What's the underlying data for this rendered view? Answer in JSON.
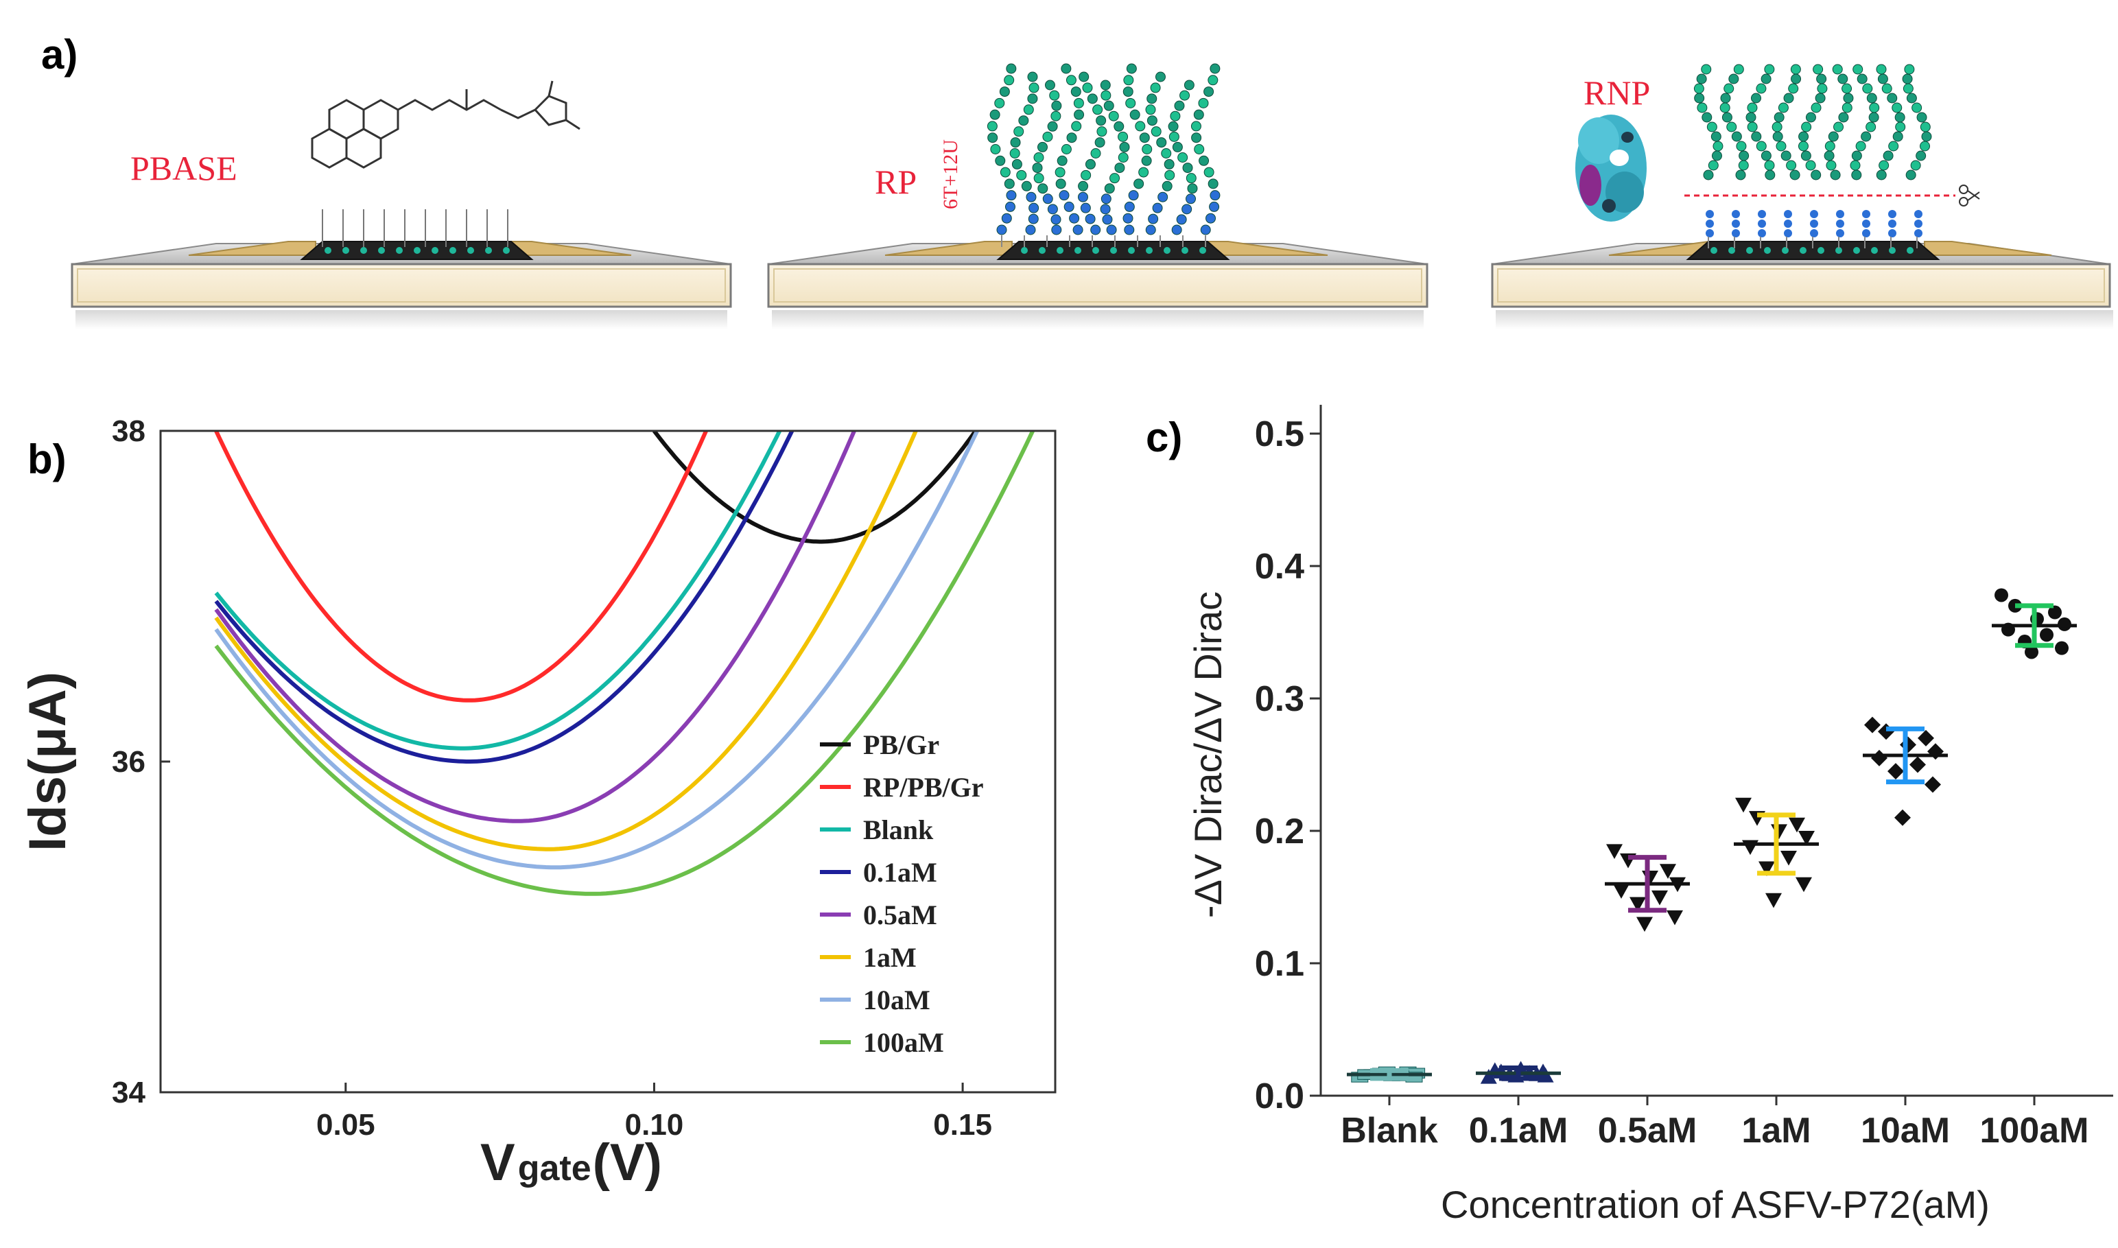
{
  "panel_a": {
    "label": "a)",
    "step1_label": "PBASE",
    "step2_label": "RP",
    "step2_sub": "6T+12U",
    "step3_label": "RNP"
  },
  "chart_data": [
    {
      "panel": "b)",
      "type": "line",
      "xlabel_main": "V",
      "xlabel_sub": "gate",
      "xlabel_unit": "(V)",
      "ylabel": "Ids(μA)",
      "xlim": [
        0.02,
        0.165
      ],
      "ylim": [
        34,
        38
      ],
      "xticks": [
        0.05,
        0.1,
        0.15
      ],
      "xtick_labels": [
        "0.05",
        "0.10",
        "0.15"
      ],
      "yticks": [
        34,
        36,
        38
      ],
      "ytick_labels": [
        "34",
        "36",
        "38"
      ],
      "series": [
        {
          "name": "PB/Gr",
          "color": "#111111",
          "vmin": 0.127,
          "imin": 37.33,
          "x_start": 0.1,
          "x_end": 0.153,
          "i_left": 38.0
        },
        {
          "name": "RP/PB/Gr",
          "color": "#ff2a2a",
          "vmin": 0.07,
          "imin": 36.37,
          "x_start": 0.029,
          "x_end": 0.109,
          "i_left": 38.0
        },
        {
          "name": "Blank",
          "color": "#12b8a6",
          "vmin": 0.069,
          "imin": 36.08,
          "x_start": 0.029,
          "x_end": 0.121,
          "i_left": 37.02
        },
        {
          "name": "0.1aM",
          "color": "#1c1f9a",
          "vmin": 0.07,
          "imin": 36.0,
          "x_start": 0.029,
          "x_end": 0.123,
          "i_left": 36.97
        },
        {
          "name": "0.5aM",
          "color": "#8a3db3",
          "vmin": 0.078,
          "imin": 35.64,
          "x_start": 0.029,
          "x_end": 0.133,
          "i_left": 36.92
        },
        {
          "name": "1aM",
          "color": "#f2c200",
          "vmin": 0.083,
          "imin": 35.47,
          "x_start": 0.029,
          "x_end": 0.143,
          "i_left": 36.87
        },
        {
          "name": "10aM",
          "color": "#8fb1e3",
          "vmin": 0.084,
          "imin": 35.36,
          "x_start": 0.029,
          "x_end": 0.153,
          "i_left": 36.8
        },
        {
          "name": "100aM",
          "color": "#6bbf4a",
          "vmin": 0.09,
          "imin": 35.2,
          "x_start": 0.029,
          "x_end": 0.162,
          "i_left": 36.7
        }
      ]
    },
    {
      "panel": "c)",
      "type": "scatter",
      "xlabel": "Concentration of ASFV-P72(aM)",
      "ylabel": "-ΔV Dirac/ΔV Dirac",
      "ylim": [
        0.0,
        0.5
      ],
      "yticks": [
        0.0,
        0.1,
        0.2,
        0.3,
        0.4,
        0.5
      ],
      "ytick_labels": [
        "0.0",
        "0.1",
        "0.2",
        "0.3",
        "0.4",
        "0.5"
      ],
      "categories": [
        "Blank",
        "0.1aM",
        "0.5aM",
        "1aM",
        "10aM",
        "100aM"
      ],
      "groups": [
        {
          "name": "Blank",
          "marker": "square",
          "color": "#6fb7b5",
          "mean": 0.016,
          "sd": 0.003,
          "points": [
            0.014,
            0.016,
            0.018,
            0.015,
            0.017,
            0.016,
            0.015,
            0.017,
            0.014,
            0.018
          ]
        },
        {
          "name": "0.1aM",
          "marker": "triangle-up",
          "color": "#1a2a6e",
          "mean": 0.017,
          "sd": 0.004,
          "points": [
            0.014,
            0.018,
            0.016,
            0.02,
            0.015,
            0.019,
            0.017,
            0.016,
            0.018,
            0.015
          ]
        },
        {
          "name": "0.5aM",
          "marker": "triangle-down",
          "color": "#7b2a80",
          "mean": 0.16,
          "sd": 0.02,
          "points": [
            0.185,
            0.178,
            0.17,
            0.165,
            0.16,
            0.155,
            0.15,
            0.145,
            0.135,
            0.13
          ]
        },
        {
          "name": "1aM",
          "marker": "triangle-down",
          "color": "#f2d21a",
          "mean": 0.19,
          "sd": 0.022,
          "points": [
            0.22,
            0.21,
            0.205,
            0.2,
            0.195,
            0.188,
            0.18,
            0.172,
            0.16,
            0.148
          ]
        },
        {
          "name": "10aM",
          "marker": "diamond",
          "color": "#2196f3",
          "mean": 0.257,
          "sd": 0.02,
          "points": [
            0.28,
            0.275,
            0.27,
            0.265,
            0.26,
            0.255,
            0.25,
            0.245,
            0.235,
            0.21
          ]
        },
        {
          "name": "100aM",
          "marker": "circle",
          "color": "#22c55e",
          "mean": 0.355,
          "sd": 0.015,
          "points": [
            0.378,
            0.37,
            0.365,
            0.36,
            0.356,
            0.352,
            0.348,
            0.343,
            0.338,
            0.335
          ]
        }
      ]
    }
  ]
}
